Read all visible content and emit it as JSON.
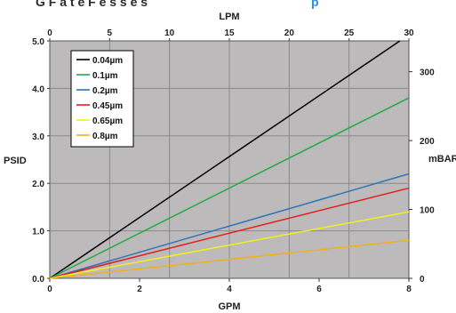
{
  "header": {
    "fragment_left": "G F  a t e  F  e s s  e  s",
    "fragment_right": "p"
  },
  "chart_data": {
    "type": "line",
    "xlabel": "GPM",
    "x2label": "LPM",
    "ylabel": "PSID",
    "y2label": "mBAR",
    "xlim": [
      0,
      8
    ],
    "ylim": [
      0,
      5
    ],
    "x2lim": [
      0,
      30
    ],
    "y2lim": [
      0,
      344.7
    ],
    "xticks": [
      "0",
      "2",
      "4",
      "6",
      "8"
    ],
    "x2ticks": [
      "0",
      "5",
      "10",
      "15",
      "20",
      "25",
      "30"
    ],
    "yticks": [
      "0.0",
      "1.0",
      "2.0",
      "3.0",
      "4.0",
      "5.0"
    ],
    "y2ticks": [
      "0",
      "100",
      "200",
      "300"
    ],
    "grid": true,
    "legend_position": "top-left",
    "background": "#bdbabb",
    "series": [
      {
        "name": "0.04µm",
        "color": "#000000",
        "x": [
          0,
          7.8
        ],
        "y": [
          0,
          5.0
        ]
      },
      {
        "name": "0.1µm",
        "color": "#22aa44",
        "x": [
          0,
          8
        ],
        "y": [
          0,
          3.8
        ]
      },
      {
        "name": "0.2µm",
        "color": "#2e75b6",
        "x": [
          0,
          8
        ],
        "y": [
          0,
          2.2
        ]
      },
      {
        "name": "0.45µm",
        "color": "#e02020",
        "x": [
          0,
          8
        ],
        "y": [
          0,
          1.9
        ]
      },
      {
        "name": "0.65µm",
        "color": "#f0f020",
        "x": [
          0,
          8
        ],
        "y": [
          0,
          1.4
        ]
      },
      {
        "name": "0.8µm",
        "color": "#f0b020",
        "x": [
          0,
          8
        ],
        "y": [
          0,
          0.8
        ]
      }
    ]
  }
}
